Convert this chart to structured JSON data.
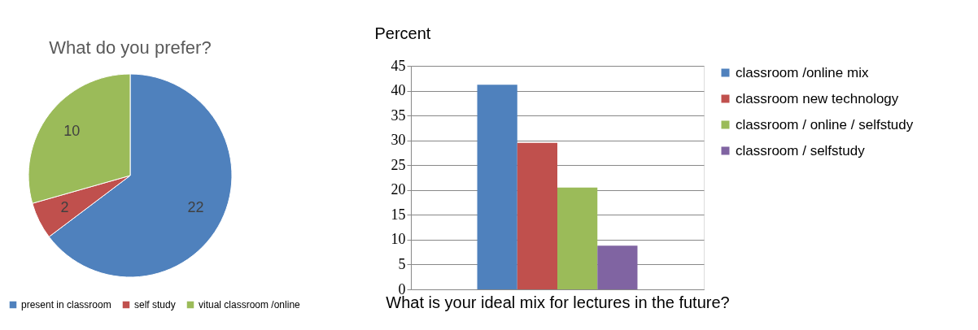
{
  "chart_data": [
    {
      "type": "pie",
      "title": "What do you prefer?",
      "categories": [
        "present in classroom",
        "self study",
        "vitual classroom /online"
      ],
      "values": [
        22,
        2,
        10
      ],
      "colors": [
        "#4f81bd",
        "#c0504d",
        "#9bbb59"
      ],
      "data_labels": true,
      "legend": "bottom"
    },
    {
      "type": "bar",
      "ylabel": "Percent",
      "xlabel": "What is your ideal mix for lectures in the future?",
      "categories": [
        null
      ],
      "series": [
        {
          "name": "classroom /online mix",
          "color": "#4f81bd",
          "values": [
            41.2
          ]
        },
        {
          "name": "classroom new technology",
          "color": "#c0504d",
          "values": [
            29.5
          ]
        },
        {
          "name": "classroom / online / selfstudy",
          "color": "#9bbb59",
          "values": [
            20.5
          ]
        },
        {
          "name": "classroom / selfstudy",
          "color": "#8064a2",
          "values": [
            8.8
          ]
        }
      ],
      "ylim": [
        0,
        45
      ],
      "yticks": [
        0,
        5,
        10,
        15,
        20,
        25,
        30,
        35,
        40,
        45
      ],
      "grid": "y",
      "legend": "right"
    }
  ]
}
